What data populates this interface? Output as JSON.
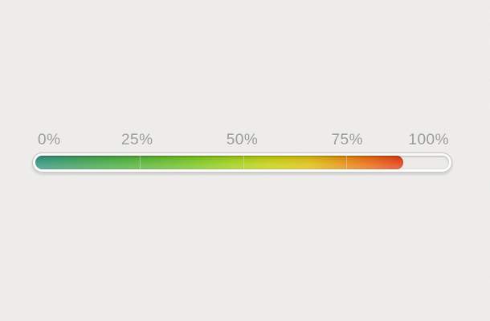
{
  "page": {
    "background_color": "#f1f0ee"
  },
  "progress_meter": {
    "labels": [
      "0%",
      "25%",
      "50%",
      "75%",
      "100%"
    ],
    "value_percent": 89,
    "segment_dividers_at": [
      25,
      50,
      75
    ],
    "gradient_stops": [
      {
        "color": "#39988a",
        "at": "0%"
      },
      {
        "color": "#43a066",
        "at": "9%"
      },
      {
        "color": "#4fae4e",
        "at": "20%"
      },
      {
        "color": "#5eb83c",
        "at": "30%"
      },
      {
        "color": "#7cc62c",
        "at": "42%"
      },
      {
        "color": "#a0d122",
        "at": "53%"
      },
      {
        "color": "#c9d019",
        "at": "64%"
      },
      {
        "color": "#dfc11c",
        "at": "74%"
      },
      {
        "color": "#e59d18",
        "at": "82%"
      },
      {
        "color": "#ea731a",
        "at": "90%"
      },
      {
        "color": "#e2401d",
        "at": "100%"
      }
    ],
    "colors": {
      "track": "#ebeae8",
      "container_border": "#c6c4c1",
      "label_text": "#999999"
    }
  }
}
